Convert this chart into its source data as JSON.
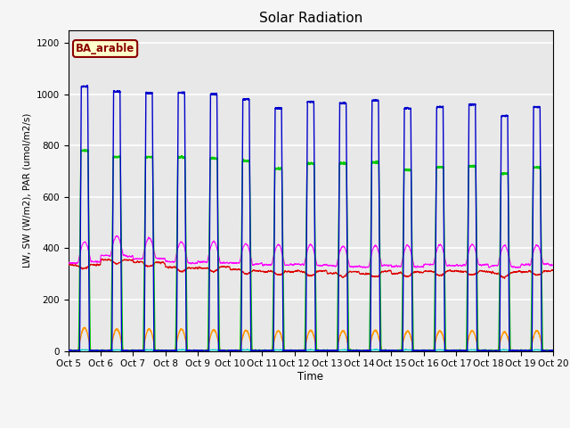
{
  "title": "Solar Radiation",
  "ylabel": "LW, SW (W/m2), PAR (umol/m2/s)",
  "xlabel": "Time",
  "annotation": "BA_arable",
  "ylim": [
    0,
    1250
  ],
  "yticks": [
    0,
    200,
    400,
    600,
    800,
    1000,
    1200
  ],
  "xtick_labels": [
    "Oct 5",
    "Oct 6",
    "Oct 7",
    "Oct 8",
    "Oct 9",
    "Oct 10",
    "Oct 11",
    "Oct 12",
    "Oct 13",
    "Oct 14",
    "Oct 15",
    "Oct 16",
    "Oct 17",
    "Oct 18",
    "Oct 19",
    "Oct 20"
  ],
  "series": {
    "LW_in": {
      "color": "#dd0000",
      "lw": 0.8
    },
    "LW_out": {
      "color": "#ff00ff",
      "lw": 0.8
    },
    "PAR_in": {
      "color": "#0000cc",
      "lw": 1.0
    },
    "PAR_out": {
      "color": "#00cccc",
      "lw": 0.8
    },
    "SW_in": {
      "color": "#00cc00",
      "lw": 1.0
    },
    "SW_out": {
      "color": "#ff9900",
      "lw": 1.0
    }
  },
  "bg_color": "#e8e8e8",
  "grid_color": "#ffffff",
  "n_days": 15,
  "day_start": 5,
  "pts_per_day": 288,
  "par_in_peaks": [
    1030,
    1010,
    1005,
    1005,
    1000,
    980,
    945,
    970,
    965,
    975,
    945,
    950,
    960,
    915,
    950
  ],
  "sw_in_peaks": [
    780,
    755,
    755,
    755,
    750,
    740,
    710,
    730,
    730,
    735,
    705,
    715,
    720,
    690,
    715
  ],
  "sw_out_peaks": [
    90,
    85,
    85,
    85,
    82,
    80,
    78,
    80,
    78,
    80,
    77,
    78,
    78,
    74,
    78
  ],
  "lw_in_base": [
    335,
    355,
    345,
    325,
    325,
    315,
    310,
    310,
    305,
    305,
    305,
    310,
    310,
    305,
    310
  ],
  "lw_out_base": [
    345,
    370,
    360,
    345,
    345,
    340,
    335,
    335,
    330,
    330,
    330,
    335,
    335,
    330,
    335
  ]
}
